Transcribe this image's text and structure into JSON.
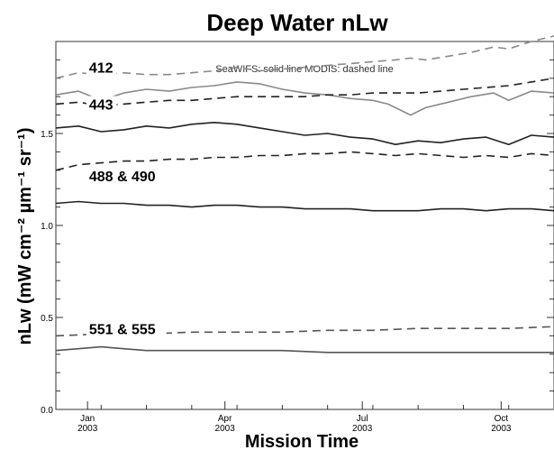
{
  "chart_data": {
    "type": "line",
    "title": "Deep Water nLw",
    "xlabel": "Mission Time",
    "ylabel": "nLw (mW cm⁻² µm⁻¹ sr⁻¹)",
    "legend_note": "SeaWIFS: solid line    MODIS: dashed line",
    "x_start_date": "2002-12-10",
    "xlim_days": [
      0,
      330
    ],
    "ylim": [
      0.0,
      2.0
    ],
    "grid": false,
    "yticks": [
      {
        "value": 0.0,
        "label": "0.0"
      },
      {
        "value": 0.5,
        "label": "0.5"
      },
      {
        "value": 1.0,
        "label": "1.0"
      },
      {
        "value": 1.5,
        "label": "1.5"
      }
    ],
    "xticks": [
      {
        "day": 21,
        "label": "Jan",
        "year": "2003"
      },
      {
        "day": 112,
        "label": "Apr",
        "year": "2003"
      },
      {
        "day": 203,
        "label": "Jul",
        "year": "2003"
      },
      {
        "day": 295,
        "label": "Oct",
        "year": "2003"
      }
    ],
    "band_labels": [
      {
        "text": "412",
        "day": 22,
        "y": 1.83
      },
      {
        "text": "443",
        "day": 22,
        "y": 1.63
      },
      {
        "text": "488 & 490",
        "day": 22,
        "y": 1.24
      },
      {
        "text": "551 & 555",
        "day": 22,
        "y": 0.41
      }
    ],
    "series": [
      {
        "name": "412 MODIS",
        "style": "dashed",
        "color": "#8a8a8a",
        "x": [
          0,
          15,
          30,
          45,
          60,
          75,
          90,
          105,
          120,
          135,
          150,
          165,
          180,
          195,
          210,
          225,
          235,
          245,
          260,
          275,
          290,
          300,
          315,
          330
        ],
        "y": [
          1.8,
          1.83,
          1.82,
          1.83,
          1.82,
          1.82,
          1.83,
          1.84,
          1.86,
          1.84,
          1.85,
          1.86,
          1.87,
          1.88,
          1.89,
          1.9,
          1.91,
          1.9,
          1.92,
          1.94,
          1.97,
          1.96,
          2.0,
          2.03
        ]
      },
      {
        "name": "412 SeaWIFS",
        "style": "solid",
        "color": "#8a8a8a",
        "x": [
          0,
          15,
          30,
          45,
          60,
          75,
          90,
          105,
          120,
          135,
          150,
          165,
          180,
          195,
          210,
          220,
          235,
          245,
          260,
          275,
          290,
          300,
          315,
          330
        ],
        "y": [
          1.71,
          1.73,
          1.68,
          1.72,
          1.74,
          1.73,
          1.75,
          1.76,
          1.78,
          1.77,
          1.74,
          1.72,
          1.71,
          1.69,
          1.68,
          1.66,
          1.6,
          1.64,
          1.67,
          1.7,
          1.72,
          1.68,
          1.73,
          1.72
        ]
      },
      {
        "name": "443 MODIS",
        "style": "dashed",
        "color": "#222222",
        "x": [
          0,
          15,
          30,
          45,
          60,
          75,
          90,
          105,
          120,
          135,
          150,
          165,
          180,
          195,
          210,
          225,
          240,
          255,
          270,
          285,
          300,
          315,
          330
        ],
        "y": [
          1.66,
          1.67,
          1.65,
          1.66,
          1.67,
          1.68,
          1.68,
          1.69,
          1.7,
          1.7,
          1.7,
          1.7,
          1.71,
          1.71,
          1.72,
          1.72,
          1.72,
          1.73,
          1.74,
          1.75,
          1.76,
          1.78,
          1.8
        ]
      },
      {
        "name": "443 SeaWIFS",
        "style": "solid",
        "color": "#222222",
        "x": [
          0,
          15,
          30,
          45,
          60,
          75,
          90,
          105,
          120,
          135,
          150,
          165,
          180,
          195,
          210,
          225,
          240,
          255,
          270,
          285,
          300,
          315,
          330
        ],
        "y": [
          1.53,
          1.54,
          1.51,
          1.52,
          1.54,
          1.53,
          1.55,
          1.56,
          1.55,
          1.53,
          1.51,
          1.49,
          1.5,
          1.48,
          1.47,
          1.44,
          1.46,
          1.45,
          1.47,
          1.48,
          1.44,
          1.49,
          1.48
        ]
      },
      {
        "name": "490 MODIS",
        "style": "dashed",
        "color": "#222222",
        "x": [
          0,
          15,
          30,
          45,
          60,
          75,
          90,
          105,
          120,
          135,
          150,
          165,
          180,
          195,
          210,
          225,
          240,
          255,
          270,
          285,
          300,
          315,
          330
        ],
        "y": [
          1.3,
          1.33,
          1.34,
          1.35,
          1.35,
          1.36,
          1.36,
          1.37,
          1.37,
          1.38,
          1.38,
          1.39,
          1.39,
          1.4,
          1.39,
          1.38,
          1.39,
          1.38,
          1.37,
          1.38,
          1.37,
          1.39,
          1.38
        ]
      },
      {
        "name": "488 SeaWIFS",
        "style": "solid",
        "color": "#222222",
        "x": [
          0,
          15,
          30,
          45,
          60,
          75,
          90,
          105,
          120,
          135,
          150,
          165,
          180,
          195,
          210,
          225,
          240,
          255,
          270,
          285,
          300,
          315,
          330
        ],
        "y": [
          1.12,
          1.13,
          1.12,
          1.12,
          1.11,
          1.11,
          1.1,
          1.11,
          1.11,
          1.1,
          1.1,
          1.09,
          1.09,
          1.09,
          1.08,
          1.08,
          1.08,
          1.09,
          1.09,
          1.08,
          1.09,
          1.09,
          1.08
        ]
      },
      {
        "name": "555 MODIS",
        "style": "dashed",
        "color": "#555555",
        "x": [
          0,
          30,
          60,
          90,
          120,
          150,
          180,
          210,
          240,
          270,
          300,
          330
        ],
        "y": [
          0.4,
          0.41,
          0.41,
          0.42,
          0.42,
          0.42,
          0.43,
          0.43,
          0.44,
          0.44,
          0.44,
          0.45
        ]
      },
      {
        "name": "551 SeaWIFS",
        "style": "solid",
        "color": "#555555",
        "x": [
          0,
          15,
          30,
          45,
          60,
          90,
          120,
          150,
          180,
          210,
          240,
          270,
          300,
          330
        ],
        "y": [
          0.32,
          0.33,
          0.34,
          0.33,
          0.32,
          0.32,
          0.32,
          0.32,
          0.31,
          0.31,
          0.31,
          0.31,
          0.31,
          0.31
        ]
      }
    ]
  }
}
